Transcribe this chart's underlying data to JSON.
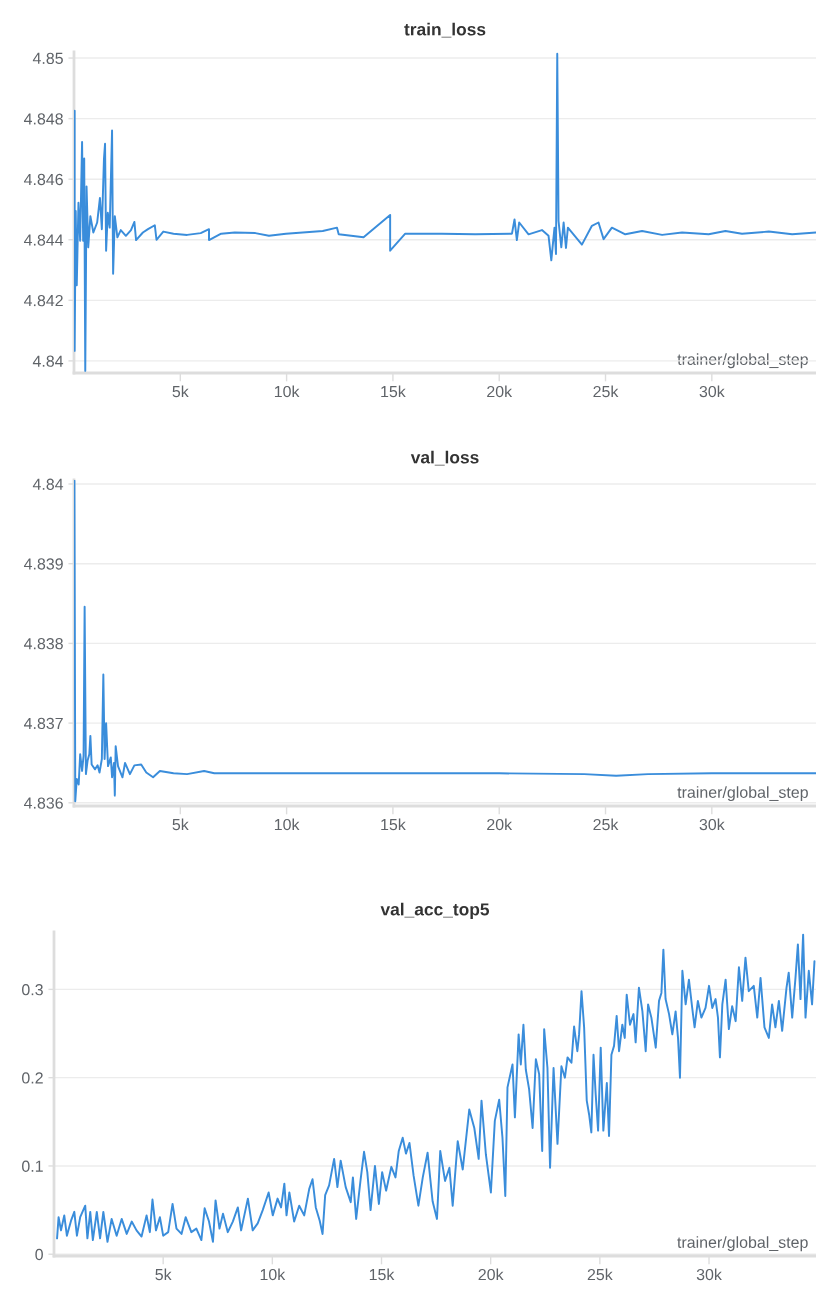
{
  "chart_data": [
    {
      "type": "line",
      "title": "train_loss",
      "xlabel": "trainer/global_step",
      "grid": "y",
      "xlim": [
        0,
        34900
      ],
      "ylim": [
        4.8396,
        4.8502
      ],
      "xticks": [
        {
          "value": 5000,
          "label": "5k"
        },
        {
          "value": 10000,
          "label": "10k"
        },
        {
          "value": 15000,
          "label": "15k"
        },
        {
          "value": 20000,
          "label": "20k"
        },
        {
          "value": 25000,
          "label": "25k"
        },
        {
          "value": 30000,
          "label": "30k"
        }
      ],
      "yticks": [
        4.84,
        4.842,
        4.844,
        4.846,
        4.848,
        4.85
      ],
      "x": [
        0,
        30,
        30,
        80,
        130,
        210,
        290,
        380,
        430,
        480,
        530,
        590,
        670,
        770,
        910,
        1090,
        1220,
        1310,
        1410,
        1460,
        1510,
        1590,
        1680,
        1790,
        1840,
        1920,
        2040,
        2200,
        2440,
        2680,
        2840,
        2920,
        3240,
        3480,
        3800,
        3880,
        4200,
        4680,
        5320,
        5960,
        6350,
        6350,
        6920,
        7560,
        8530,
        9170,
        9970,
        11700,
        12370,
        12450,
        13620,
        14870,
        14870,
        15580,
        17300,
        18870,
        20600,
        20720,
        20830,
        20940,
        21380,
        22010,
        22320,
        22450,
        22600,
        22670,
        22730,
        22790,
        22920,
        23030,
        23140,
        23230,
        23890,
        24360,
        24670,
        24910,
        25300,
        25930,
        26720,
        27660,
        28600,
        29850,
        30640,
        31420,
        32680,
        33780,
        34900
      ],
      "series": [
        {
          "color": "#3a8ddb",
          "values": [
            4.8442,
            4.84826,
            4.84033,
            4.84495,
            4.8425,
            4.84522,
            4.84397,
            4.84723,
            4.84397,
            4.84668,
            4.83967,
            4.84576,
            4.84375,
            4.84478,
            4.84424,
            4.84457,
            4.84538,
            4.84435,
            4.84668,
            4.84717,
            4.84364,
            4.84489,
            4.8444,
            4.84761,
            4.84288,
            4.84478,
            4.84408,
            4.84432,
            4.84413,
            4.84432,
            4.84459,
            4.84399,
            4.84424,
            4.84435,
            4.84448,
            4.844,
            4.84427,
            4.8442,
            4.84416,
            4.84422,
            4.84435,
            4.84399,
            4.8442,
            4.84424,
            4.84422,
            4.84413,
            4.8442,
            4.84429,
            4.8444,
            4.84418,
            4.84408,
            4.84482,
            4.84364,
            4.8442,
            4.8442,
            4.84418,
            4.8442,
            4.84467,
            4.84399,
            4.84457,
            4.84418,
            4.84432,
            4.84413,
            4.84332,
            4.8444,
            4.84353,
            4.85014,
            4.84462,
            4.84375,
            4.84457,
            4.84373,
            4.8444,
            4.84384,
            4.84446,
            4.84457,
            4.84402,
            4.8444,
            4.84418,
            4.84429,
            4.84416,
            4.84424,
            4.84418,
            4.84429,
            4.8442,
            4.84427,
            4.84418,
            4.84424
          ]
        }
      ]
    },
    {
      "type": "line",
      "title": "val_loss",
      "xlabel": "trainer/global_step",
      "grid": "y",
      "xlim": [
        0,
        34900
      ],
      "ylim": [
        4.83596,
        4.84005
      ],
      "xticks": [
        {
          "value": 5000,
          "label": "5k"
        },
        {
          "value": 10000,
          "label": "10k"
        },
        {
          "value": 15000,
          "label": "15k"
        },
        {
          "value": 20000,
          "label": "20k"
        },
        {
          "value": 25000,
          "label": "25k"
        },
        {
          "value": 30000,
          "label": "30k"
        }
      ],
      "yticks": [
        4.836,
        4.837,
        4.838,
        4.839,
        4.84
      ],
      "x": [
        20,
        60,
        130,
        220,
        290,
        380,
        450,
        500,
        560,
        640,
        720,
        770,
        830,
        990,
        1110,
        1200,
        1310,
        1380,
        1440,
        1510,
        1600,
        1730,
        1790,
        1880,
        1920,
        1960,
        2070,
        2280,
        2400,
        2630,
        2840,
        3160,
        3400,
        3720,
        4040,
        4680,
        5320,
        6120,
        6600,
        8370,
        12000,
        20000,
        24000,
        25500,
        27000,
        30000,
        34900
      ],
      "series": [
        {
          "color": "#3a8ddb",
          "values": [
            4.84004,
            4.83602,
            4.8363,
            4.83623,
            4.83661,
            4.8364,
            4.83659,
            4.83846,
            4.83636,
            4.83653,
            4.83661,
            4.83684,
            4.83648,
            4.83642,
            4.83647,
            4.83638,
            4.83655,
            4.83761,
            4.83655,
            4.837,
            4.83646,
            4.83657,
            4.83632,
            4.8365,
            4.83609,
            4.83671,
            4.83646,
            4.83632,
            4.8365,
            4.83636,
            4.83647,
            4.83648,
            4.83638,
            4.83632,
            4.8364,
            4.83637,
            4.83636,
            4.8364,
            4.83637,
            4.83637,
            4.83637,
            4.83637,
            4.83636,
            4.83634,
            4.83636,
            4.83637,
            4.83637
          ]
        }
      ]
    },
    {
      "type": "line",
      "title": "val_acc_top5",
      "xlabel": "trainer/global_step",
      "grid": "y",
      "xlim": [
        0,
        34900
      ],
      "ylim": [
        -0.002,
        0.365
      ],
      "xticks": [
        {
          "value": 5000,
          "label": "5k"
        },
        {
          "value": 10000,
          "label": "10k"
        },
        {
          "value": 15000,
          "label": "15k"
        },
        {
          "value": 20000,
          "label": "20k"
        },
        {
          "value": 25000,
          "label": "25k"
        },
        {
          "value": 30000,
          "label": "30k"
        }
      ],
      "yticks": [
        0,
        0.1,
        0.2,
        0.3
      ],
      "x": [
        140,
        210,
        320,
        470,
        590,
        780,
        930,
        1050,
        1200,
        1430,
        1530,
        1660,
        1780,
        1960,
        2110,
        2260,
        2450,
        2640,
        2870,
        3100,
        3330,
        3560,
        3780,
        4010,
        4240,
        4390,
        4510,
        4670,
        4850,
        5000,
        5230,
        5430,
        5610,
        5840,
        6030,
        6290,
        6520,
        6750,
        6900,
        7100,
        7280,
        7400,
        7580,
        7740,
        7960,
        8190,
        8420,
        8570,
        8880,
        9100,
        9330,
        9560,
        9830,
        10020,
        10240,
        10400,
        10550,
        10650,
        10780,
        11000,
        11230,
        11460,
        11690,
        11840,
        11990,
        12170,
        12300,
        12420,
        12600,
        12830,
        12980,
        13130,
        13360,
        13590,
        13690,
        13840,
        14040,
        14200,
        14350,
        14500,
        14700,
        14880,
        15030,
        15210,
        15450,
        15640,
        15790,
        15970,
        16120,
        16280,
        16470,
        16690,
        16890,
        17110,
        17340,
        17540,
        17690,
        17910,
        18110,
        18260,
        18490,
        18720,
        19020,
        19250,
        19450,
        19580,
        19780,
        20010,
        20190,
        20390,
        20540,
        20670,
        20770,
        21000,
        21110,
        21280,
        21380,
        21500,
        21610,
        21760,
        21920,
        22070,
        22220,
        22360,
        22450,
        22600,
        22720,
        22880,
        23060,
        23240,
        23400,
        23520,
        23700,
        23820,
        23970,
        24050,
        24160,
        24280,
        24400,
        24510,
        24610,
        24710,
        24810,
        24920,
        25040,
        25160,
        25320,
        25420,
        25530,
        25650,
        25770,
        25880,
        26030,
        26140,
        26230,
        26380,
        26540,
        26640,
        26790,
        26950,
        27100,
        27210,
        27360,
        27560,
        27710,
        27820,
        27910,
        28010,
        28170,
        28320,
        28470,
        28580,
        28670,
        28780,
        28930,
        29080,
        29230,
        29340,
        29490,
        29650,
        29840,
        30000,
        30150,
        30300,
        30410,
        30500,
        30610,
        30760,
        30910,
        31060,
        31220,
        31370,
        31520,
        31670,
        31820,
        32050,
        32210,
        32360,
        32540,
        32740,
        32890,
        33040,
        33200,
        33350,
        33550,
        33650,
        33810,
        33960,
        34070,
        34190,
        34310,
        34420,
        34570,
        34720,
        34830
      ],
      "series": [
        {
          "color": "#3a8ddb",
          "values": [
            0.018,
            0.042,
            0.027,
            0.044,
            0.021,
            0.038,
            0.048,
            0.021,
            0.042,
            0.055,
            0.018,
            0.048,
            0.016,
            0.048,
            0.018,
            0.048,
            0.014,
            0.04,
            0.021,
            0.04,
            0.023,
            0.037,
            0.027,
            0.02,
            0.044,
            0.025,
            0.062,
            0.027,
            0.042,
            0.021,
            0.025,
            0.057,
            0.029,
            0.023,
            0.042,
            0.025,
            0.029,
            0.016,
            0.052,
            0.037,
            0.014,
            0.061,
            0.029,
            0.046,
            0.025,
            0.037,
            0.053,
            0.027,
            0.063,
            0.027,
            0.035,
            0.05,
            0.07,
            0.044,
            0.063,
            0.053,
            0.08,
            0.044,
            0.07,
            0.037,
            0.055,
            0.044,
            0.074,
            0.085,
            0.053,
            0.038,
            0.023,
            0.067,
            0.078,
            0.108,
            0.076,
            0.106,
            0.076,
            0.059,
            0.087,
            0.04,
            0.084,
            0.116,
            0.093,
            0.05,
            0.1,
            0.057,
            0.093,
            0.072,
            0.099,
            0.087,
            0.117,
            0.132,
            0.114,
            0.126,
            0.089,
            0.055,
            0.087,
            0.115,
            0.06,
            0.04,
            0.117,
            0.083,
            0.098,
            0.055,
            0.128,
            0.096,
            0.164,
            0.143,
            0.108,
            0.174,
            0.113,
            0.07,
            0.151,
            0.175,
            0.132,
            0.066,
            0.189,
            0.215,
            0.155,
            0.249,
            0.215,
            0.26,
            0.209,
            0.187,
            0.143,
            0.221,
            0.204,
            0.117,
            0.255,
            0.211,
            0.098,
            0.211,
            0.125,
            0.213,
            0.2,
            0.223,
            0.217,
            0.258,
            0.23,
            0.249,
            0.298,
            0.257,
            0.174,
            0.158,
            0.138,
            0.226,
            0.181,
            0.14,
            0.234,
            0.14,
            0.194,
            0.134,
            0.226,
            0.236,
            0.27,
            0.23,
            0.26,
            0.245,
            0.294,
            0.26,
            0.272,
            0.24,
            0.302,
            0.275,
            0.23,
            0.283,
            0.268,
            0.234,
            0.287,
            0.296,
            0.345,
            0.289,
            0.272,
            0.249,
            0.275,
            0.245,
            0.2,
            0.321,
            0.283,
            0.311,
            0.279,
            0.257,
            0.287,
            0.268,
            0.279,
            0.304,
            0.279,
            0.289,
            0.268,
            0.223,
            0.283,
            0.311,
            0.255,
            0.281,
            0.264,
            0.325,
            0.287,
            0.336,
            0.298,
            0.304,
            0.268,
            0.313,
            0.257,
            0.245,
            0.283,
            0.257,
            0.287,
            0.253,
            0.302,
            0.319,
            0.268,
            0.313,
            0.351,
            0.289,
            0.362,
            0.268,
            0.321,
            0.283,
            0.332
          ]
        }
      ]
    }
  ]
}
